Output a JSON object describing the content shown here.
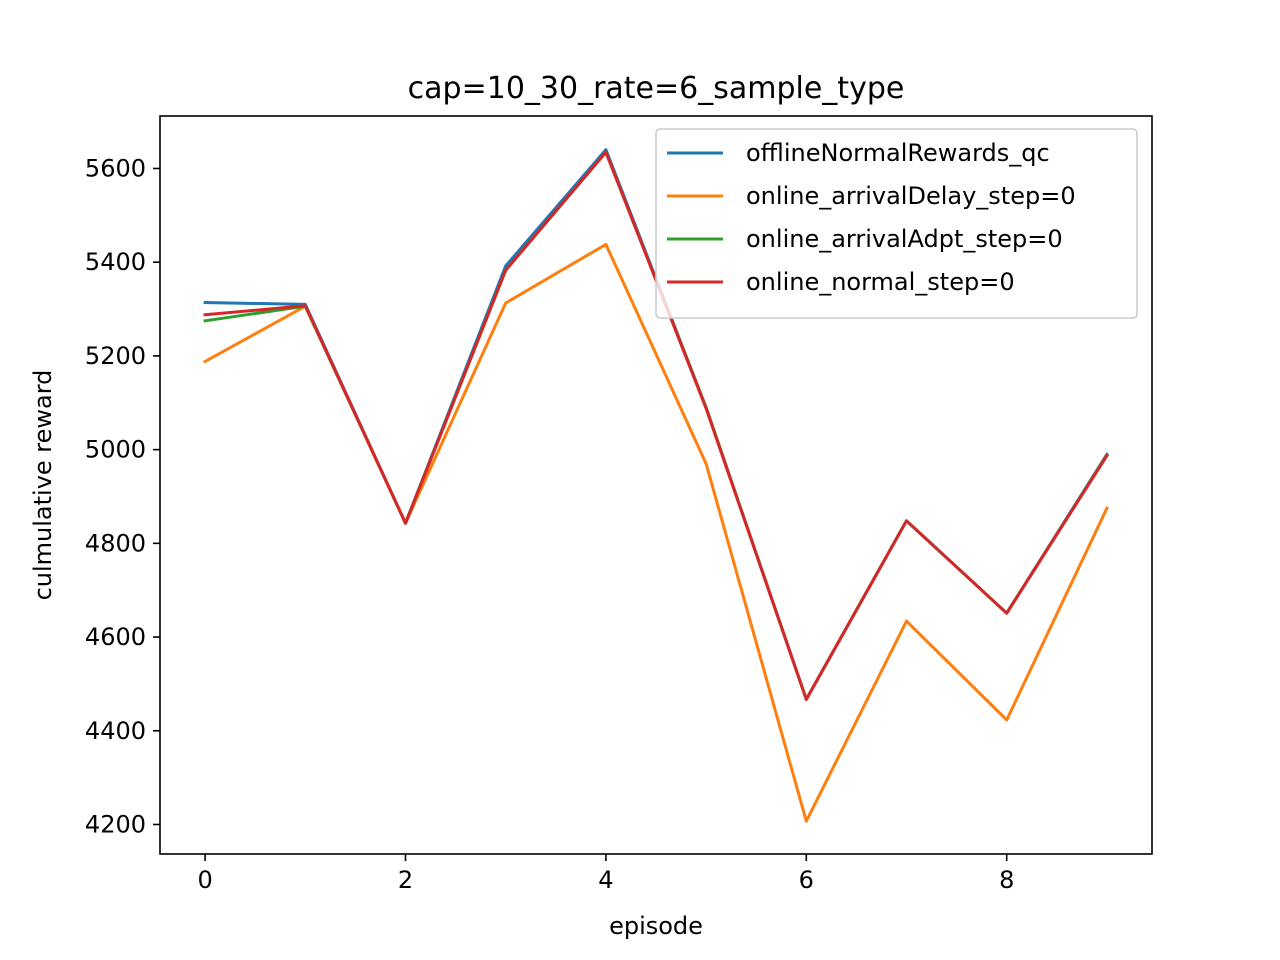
{
  "chart_data": {
    "type": "line",
    "title": "cap=10_30_rate=6_sample_type",
    "xlabel": "episode",
    "ylabel": "culmulative reward",
    "x": [
      0,
      1,
      2,
      3,
      4,
      5,
      6,
      7,
      8,
      9
    ],
    "xlim": [
      -0.45,
      9.45
    ],
    "ylim": [
      4137,
      5712
    ],
    "xticks": [
      0,
      2,
      4,
      6,
      8
    ],
    "yticks": [
      4200,
      4400,
      4600,
      4800,
      5000,
      5200,
      5400,
      5600
    ],
    "grid": false,
    "legend_position": "top-right",
    "series": [
      {
        "name": "offlineNormalRewards_qc",
        "color": "#1f77b4",
        "values": [
          5314,
          5310,
          4843,
          5392,
          5640,
          5090,
          4467,
          4848,
          4651,
          4990
        ]
      },
      {
        "name": "online_arrivalDelay_step=0",
        "color": "#ff7f0e",
        "values": [
          5188,
          5306,
          4843,
          5313,
          5438,
          4970,
          4207,
          4634,
          4423,
          4875
        ]
      },
      {
        "name": "online_arrivalAdpt_step=0",
        "color": "#2ca02c",
        "values": [
          5275,
          5306,
          4843,
          5383,
          5635,
          5090,
          4467,
          4848,
          4651,
          4988
        ]
      },
      {
        "name": "online_normal_step=0",
        "color": "#d62728",
        "values": [
          5288,
          5307,
          4843,
          5383,
          5635,
          5088,
          4467,
          4848,
          4651,
          4987
        ]
      }
    ]
  }
}
